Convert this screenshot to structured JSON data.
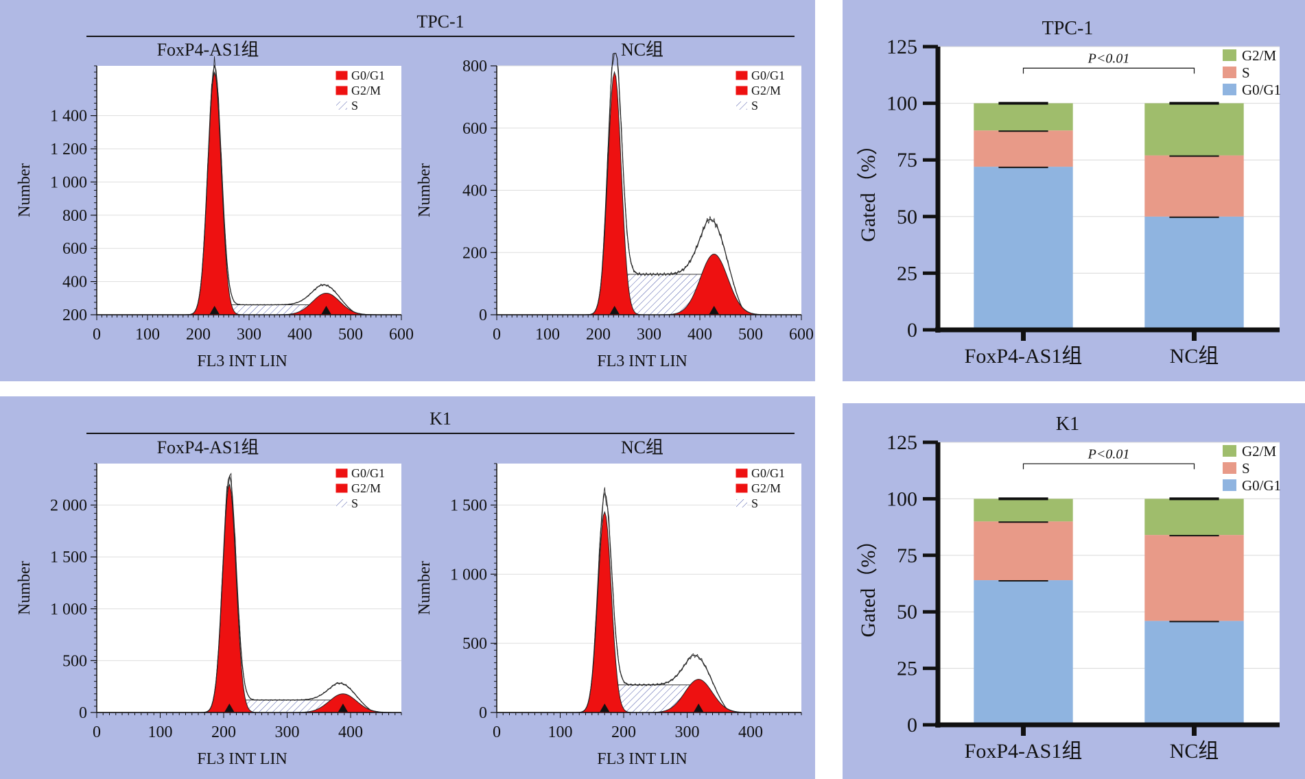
{
  "chart_data": [
    {
      "type": "area",
      "panel": "TPC-1",
      "title": "FoxP4-AS1组",
      "xlabel": "FL3 INT LIN",
      "ylabel": "Number",
      "xlim": [
        0,
        600
      ],
      "ylim": [
        200,
        1700
      ],
      "x_ticks": [
        "0",
        "100",
        "200",
        "300",
        "400",
        "500",
        "600"
      ],
      "y_ticks": [
        "200",
        "400",
        "600",
        "800",
        "1 000",
        "1 200",
        "1 400"
      ],
      "legend": [
        "G0/G1",
        "G2/M",
        "S"
      ],
      "peaks": {
        "g1_mean": 232,
        "g1_height": 1660,
        "g2_mean": 452,
        "g2_height": 330,
        "s_level": 260
      },
      "markers": [
        232,
        452
      ]
    },
    {
      "type": "area",
      "panel": "TPC-1",
      "title": "NC组",
      "xlabel": "FL3 INT LIN",
      "ylabel": "Number",
      "xlim": [
        0,
        600
      ],
      "ylim": [
        0,
        800
      ],
      "x_ticks": [
        "0",
        "100",
        "200",
        "300",
        "400",
        "500",
        "600"
      ],
      "y_ticks": [
        "0",
        "200",
        "400",
        "600",
        "800"
      ],
      "legend": [
        "G0/G1",
        "G2/M",
        "S"
      ],
      "peaks": {
        "g1_mean": 232,
        "g1_height": 780,
        "g2_mean": 428,
        "g2_height": 195,
        "s_level": 130
      },
      "markers": [
        232,
        428
      ]
    },
    {
      "type": "area",
      "panel": "K1",
      "title": "FoxP4-AS1组",
      "xlabel": "FL3 INT LIN",
      "ylabel": "Number",
      "xlim": [
        0,
        480
      ],
      "ylim": [
        0,
        2400
      ],
      "x_ticks": [
        "0",
        "100",
        "200",
        "300",
        "400"
      ],
      "y_ticks": [
        "0",
        "500",
        "1 000",
        "1 500",
        "2 000"
      ],
      "legend": [
        "G0/G1",
        "G2/M",
        "S"
      ],
      "peaks": {
        "g1_mean": 209,
        "g1_height": 2200,
        "g2_mean": 388,
        "g2_height": 180,
        "s_level": 120
      },
      "markers": [
        209,
        388
      ]
    },
    {
      "type": "area",
      "panel": "K1",
      "title": "NC组",
      "xlabel": "FL3 INT LIN",
      "ylabel": "Number",
      "xlim": [
        0,
        480
      ],
      "ylim": [
        0,
        1800
      ],
      "x_ticks": [
        "0",
        "100",
        "200",
        "300",
        "400"
      ],
      "y_ticks": [
        "0",
        "500",
        "1 000",
        "1 500"
      ],
      "legend": [
        "G0/G1",
        "G2/M",
        "S"
      ],
      "peaks": {
        "g1_mean": 170,
        "g1_height": 1450,
        "g2_mean": 318,
        "g2_height": 240,
        "s_level": 200
      },
      "markers": [
        170,
        318
      ]
    },
    {
      "type": "bar",
      "stacked": true,
      "title": "TPC-1",
      "xlabel": "",
      "ylabel": "Gated（%）",
      "ylim": [
        0,
        125
      ],
      "y_ticks": [
        "0",
        "25",
        "50",
        "75",
        "100",
        "125"
      ],
      "categories": [
        "FoxP4-AS1组",
        "NC组"
      ],
      "series": [
        {
          "name": "G0/G1",
          "values": [
            72,
            50
          ]
        },
        {
          "name": "S",
          "values": [
            16,
            27
          ]
        },
        {
          "name": "G2/M",
          "values": [
            12,
            23
          ]
        }
      ],
      "annotation": "P<0.01"
    },
    {
      "type": "bar",
      "stacked": true,
      "title": "K1",
      "xlabel": "",
      "ylabel": "Gated（%）",
      "ylim": [
        0,
        125
      ],
      "y_ticks": [
        "0",
        "25",
        "50",
        "75",
        "100",
        "125"
      ],
      "categories": [
        "FoxP4-AS1组",
        "NC组"
      ],
      "series": [
        {
          "name": "G0/G1",
          "values": [
            64,
            46
          ]
        },
        {
          "name": "S",
          "values": [
            26,
            38
          ]
        },
        {
          "name": "G2/M",
          "values": [
            10,
            16
          ]
        }
      ],
      "annotation": "P<0.01"
    }
  ],
  "labels": {
    "panel_tpc1": "TPC-1",
    "panel_k1": "K1"
  },
  "colors": {
    "panel_bg": "#b0b9e4",
    "g1_fill": "#ee1111",
    "bar_g1": "#8fb4e0",
    "bar_s": "#e89a88",
    "bar_g2m": "#9fbd6c"
  }
}
